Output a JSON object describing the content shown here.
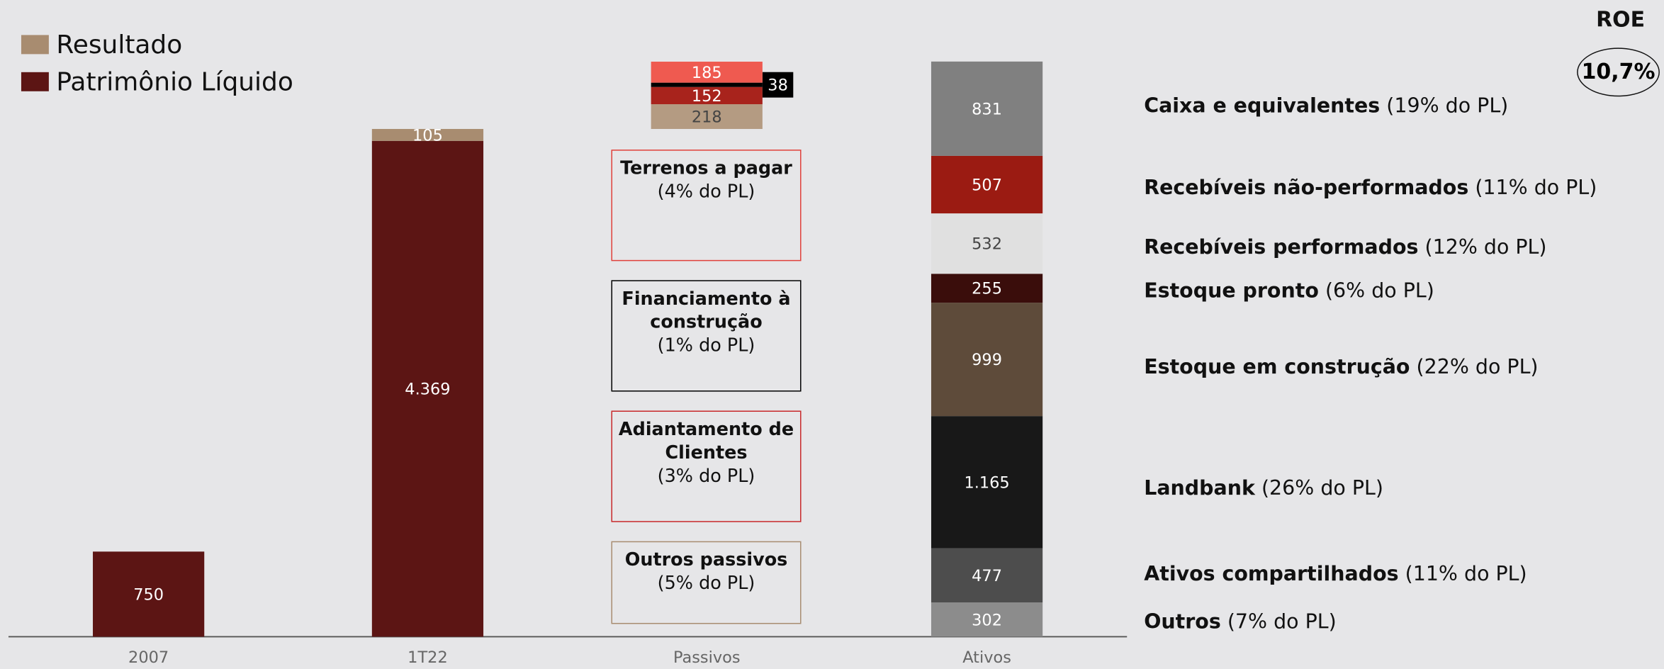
{
  "chart_data": {
    "type": "stacked_bar",
    "legend": [
      {
        "name": "Resultado",
        "color": "#a88c70"
      },
      {
        "name": "Patrimônio Líquido",
        "color": "#5c1514"
      }
    ],
    "categories": [
      "2007",
      "1T22",
      "Passivos",
      "Ativos"
    ],
    "bars": [
      {
        "values": [
          750
        ],
        "colors": [
          "#5c1514"
        ]
      },
      {
        "values": [
          4369,
          105
        ],
        "value_labels": [
          "4.369",
          "105"
        ],
        "colors": [
          "#5c1514",
          "#a88c70"
        ]
      },
      {
        "values": [
          218,
          152,
          38,
          185
        ],
        "colors": [
          "#b49b82",
          "#a8231c",
          "#000000",
          "#ef5a50"
        ]
      },
      {
        "values": [
          302,
          477,
          1165,
          999,
          255,
          532,
          507,
          831
        ],
        "value_labels": [
          "302",
          "477",
          "1.165",
          "999",
          "255",
          "532",
          "507",
          "831"
        ],
        "colors": [
          "#8c8c8c",
          "#4d4d4d",
          "#181818",
          "#5e4b3a",
          "#3a0d0b",
          "#e0e0e0",
          "#9b1b12",
          "#808080"
        ]
      }
    ],
    "liabilities": [
      {
        "title": "Terrenos a pagar",
        "note": "(4% do PL)",
        "border": "#e0403a"
      },
      {
        "title": "Financiamento à construção",
        "note": "(1% do PL)",
        "border": "#000000"
      },
      {
        "title": "Adiantamento de Clientes",
        "note": "(3% do PL)",
        "border": "#c8282a"
      },
      {
        "title": "Outros passivos",
        "note": "(5% do PL)",
        "border": "#a88c70"
      }
    ],
    "assets": [
      {
        "name": "Caixa e equivalentes",
        "note": "(19% do PL)"
      },
      {
        "name": "Recebíveis não-performados",
        "note": "(11% do PL)"
      },
      {
        "name": "Recebíveis performados",
        "note": "(12% do PL)"
      },
      {
        "name": "Estoque pronto",
        "note": "(6% do PL)"
      },
      {
        "name": "Estoque em construção",
        "note": "(22% do PL)"
      },
      {
        "name": "Landbank",
        "note": "(26% do PL)"
      },
      {
        "name": "Ativos compartilhados",
        "note": "(11% do PL)"
      },
      {
        "name": "Outros",
        "note": "(7% do PL)"
      }
    ],
    "roe": {
      "label": "ROE",
      "value": "10,7%"
    }
  }
}
